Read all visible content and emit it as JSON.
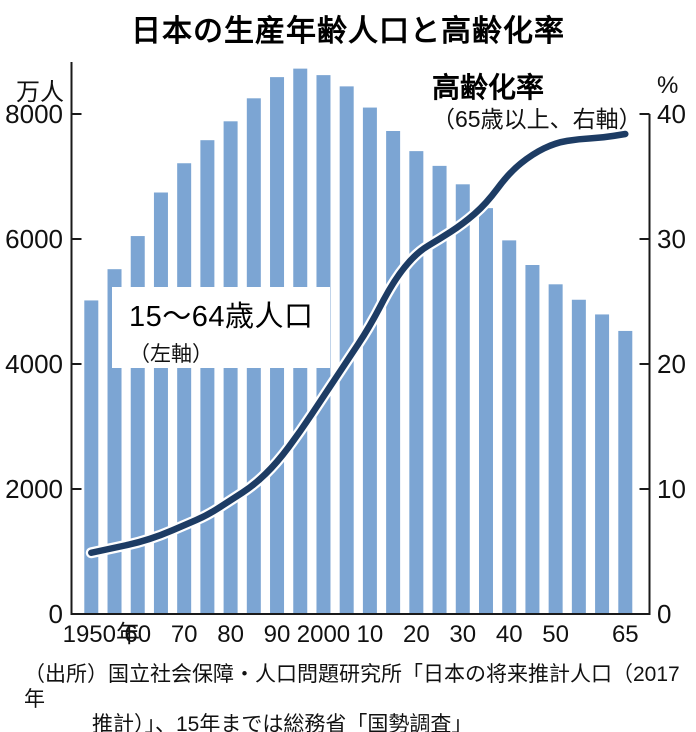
{
  "title": "日本の生産年齢人口と高齢化率",
  "left_axis_unit": "万人",
  "right_axis_unit": "%",
  "bar_legend": {
    "main": "15～64歳人口",
    "sub": "（左軸）"
  },
  "line_legend": {
    "main": "高齢化率",
    "sub": "（65歳以上、右軸）"
  },
  "source": {
    "line1": "（出所）国立社会保障・人口問題研究所「日本の将来推計人口（2017年",
    "line2": "推計）」、15年までは総務省「国勢調査」"
  },
  "colors": {
    "bar": "#7CA5D3",
    "line": "#1D3C64",
    "line_halo": "#FFFFFF",
    "axis": "#1A1A1A",
    "text": "#111111"
  },
  "chart_data": {
    "type": "bar+line",
    "x": [
      1950,
      1955,
      1960,
      1965,
      1970,
      1975,
      1980,
      1985,
      1990,
      1995,
      2000,
      2005,
      2010,
      2015,
      2020,
      2025,
      2030,
      2035,
      2040,
      2045,
      2050,
      2055,
      2060,
      2065
    ],
    "series": [
      {
        "name": "15～64歳人口（左軸）",
        "type": "bar",
        "axis": "left",
        "unit": "万人",
        "values": [
          5017,
          5517,
          6047,
          6744,
          7212,
          7581,
          7883,
          8251,
          8590,
          8726,
          8622,
          8442,
          8103,
          7728,
          7406,
          7170,
          6875,
          6494,
          5978,
          5584,
          5275,
          5028,
          4793,
          4529
        ]
      },
      {
        "name": "高齢化率（65歳以上、右軸）",
        "type": "line",
        "axis": "right",
        "unit": "%",
        "values": [
          4.9,
          5.3,
          5.7,
          6.3,
          7.1,
          7.9,
          9.1,
          10.3,
          12.1,
          14.6,
          17.4,
          20.2,
          23.0,
          26.6,
          28.9,
          30.0,
          31.2,
          32.8,
          35.3,
          36.8,
          37.7,
          38.0,
          38.1,
          38.4
        ]
      }
    ],
    "left_axis": {
      "label": "万人",
      "ticks": [
        0,
        2000,
        4000,
        6000,
        8000
      ],
      "range": [
        0,
        8830
      ]
    },
    "right_axis": {
      "label": "%",
      "ticks": [
        0,
        10,
        20,
        30,
        40
      ],
      "range": [
        0,
        44.2
      ]
    },
    "x_tick_labels": [
      {
        "year": 1950,
        "label": "1950年"
      },
      {
        "year": 1960,
        "label": "60"
      },
      {
        "year": 1970,
        "label": "70"
      },
      {
        "year": 1980,
        "label": "80"
      },
      {
        "year": 1990,
        "label": "90"
      },
      {
        "year": 2000,
        "label": "2000"
      },
      {
        "year": 2010,
        "label": "10"
      },
      {
        "year": 2020,
        "label": "20"
      },
      {
        "year": 2030,
        "label": "30"
      },
      {
        "year": 2040,
        "label": "40"
      },
      {
        "year": 2050,
        "label": "50"
      },
      {
        "year": 2065,
        "label": "65"
      }
    ],
    "grid": false,
    "legend_position": "inside"
  }
}
